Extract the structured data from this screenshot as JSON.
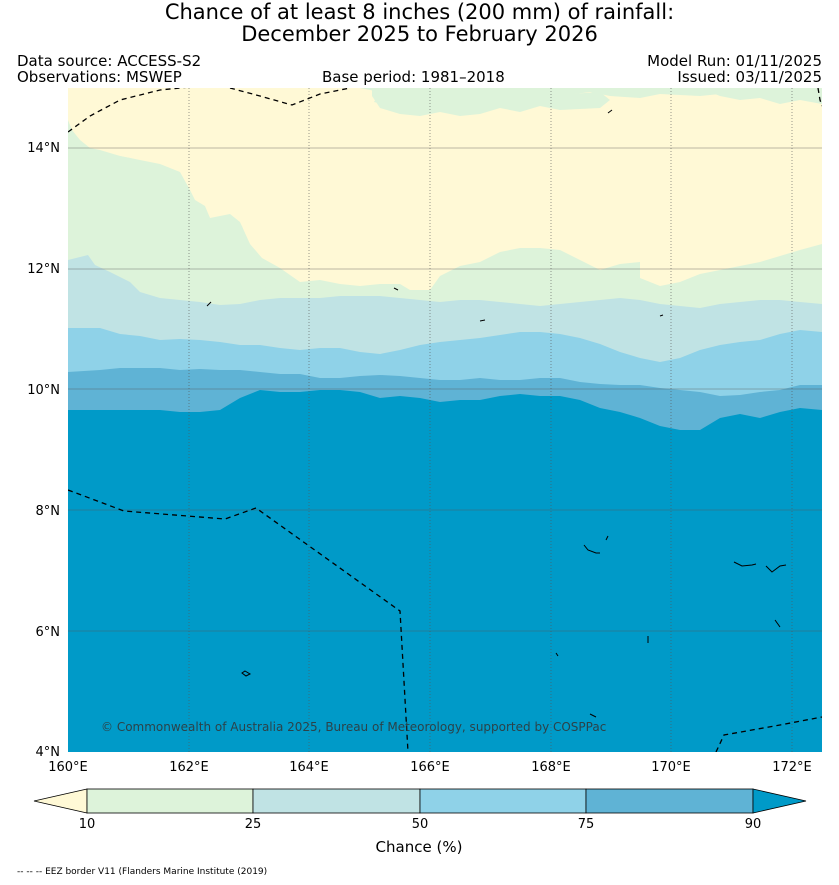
{
  "title_line1": "Chance of at least 8 inches (200  mm) of rainfall:",
  "title_line2": "December 2025 to February 2026",
  "data_source": "Data source: ACCESS-S2",
  "observations": "Observations: MSWEP",
  "base_period": "Base period: 1981–2018",
  "model_run": "Model Run: 01/11/2025",
  "issued": "Issued: 03/11/2025",
  "copyright": "© Commonwealth of Australia 2025, Bureau of Meteorology, supported by COSPPac",
  "footnote": "-- -- -- EEZ border V11 (Flanders Marine Institute (2019)",
  "map": {
    "lon_range": [
      160,
      172.5
    ],
    "lat_range": [
      4,
      15
    ],
    "lon_ticks": [
      "160°E",
      "162°E",
      "164°E",
      "166°E",
      "168°E",
      "170°E",
      "172°E"
    ],
    "lat_ticks": [
      "4°N",
      "6°N",
      "8°N",
      "10°N",
      "12°N",
      "14°N"
    ]
  },
  "colorbar": {
    "title": "Chance (%)",
    "ticks": [
      "10",
      "25",
      "50",
      "75",
      "90"
    ],
    "colors": {
      "below_10": "#fff9d6",
      "10_25": "#ddf3da",
      "25_50": "#c0e3e4",
      "50_75": "#8fd2e8",
      "75_90": "#5fb3d5",
      "above_90": "#009ac8"
    }
  }
}
